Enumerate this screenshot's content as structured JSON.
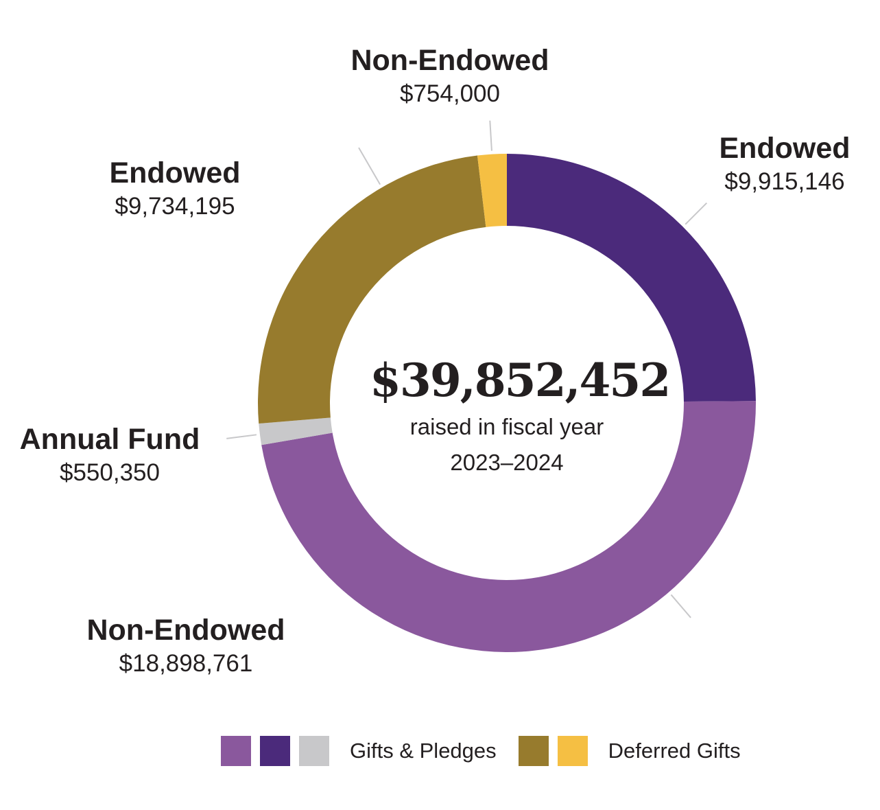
{
  "chart_data": {
    "type": "pie",
    "subtype": "donut",
    "total": {
      "value": "$39,852,452",
      "caption_line1": "raised in fiscal year",
      "caption_line2": "2023–2024"
    },
    "slices": [
      {
        "id": "gifts-endowed",
        "label": "Endowed",
        "amount_text": "$9,915,146",
        "value": 9915146,
        "group": "Gifts & Pledges",
        "color": "#4b2a7b"
      },
      {
        "id": "gifts-non-endowed",
        "label": "Non-Endowed",
        "amount_text": "$18,898,761",
        "value": 18898761,
        "group": "Gifts & Pledges",
        "color": "#8a589d"
      },
      {
        "id": "annual-fund",
        "label": "Annual Fund",
        "amount_text": "$550,350",
        "value": 550350,
        "group": "Gifts & Pledges",
        "color": "#c8c8ca"
      },
      {
        "id": "deferred-endowed",
        "label": "Endowed",
        "amount_text": "$9,734,195",
        "value": 9734195,
        "group": "Deferred Gifts",
        "color": "#977b2d"
      },
      {
        "id": "deferred-non-endowed",
        "label": "Non-Endowed",
        "amount_text": "$754,000",
        "value": 754000,
        "group": "Deferred Gifts",
        "color": "#f5bf43"
      }
    ],
    "legend": {
      "position": "bottom",
      "groups": [
        {
          "label": "Gifts & Pledges",
          "colors": [
            "#8a589d",
            "#4b2a7b",
            "#c8c8ca"
          ]
        },
        {
          "label": "Deferred Gifts",
          "colors": [
            "#977b2d",
            "#f5bf43"
          ]
        }
      ]
    },
    "leader_line_color": "#c8c8ca"
  }
}
